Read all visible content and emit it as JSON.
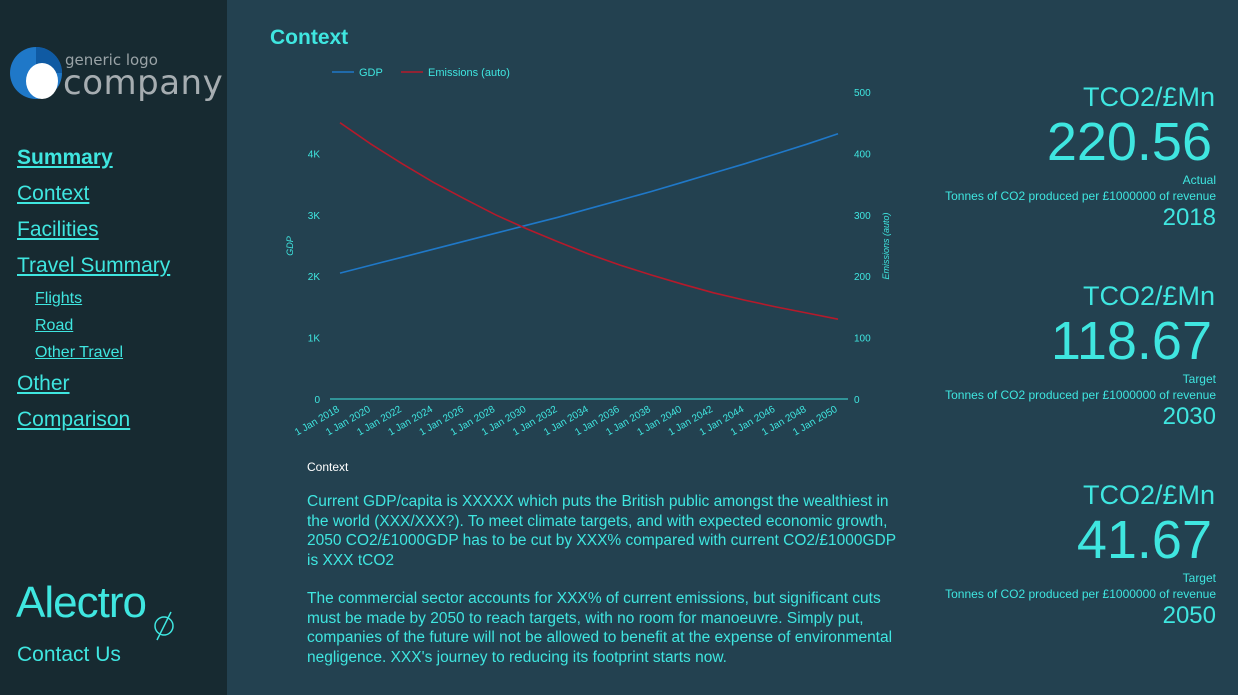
{
  "sidebar": {
    "logo": {
      "small": "generic logo",
      "big": "company"
    },
    "nav": [
      {
        "label": "Summary"
      },
      {
        "label": "Context"
      },
      {
        "label": "Facilities"
      },
      {
        "label": "Travel Summary"
      },
      {
        "label": "Flights"
      },
      {
        "label": "Road"
      },
      {
        "label": "Other Travel"
      },
      {
        "label": "Other"
      },
      {
        "label": "Comparison"
      }
    ],
    "brand": "Alectro",
    "contact": "Contact Us"
  },
  "main": {
    "title": "Context",
    "context_heading": "Context",
    "paragraphs": [
      "Current GDP/capita is XXXXX which puts the British public amongst the wealthiest in the world (XXX/XXX?). To meet climate targets, and with expected economic growth, 2050 CO2/£1000GDP has to be cut by XXX% compared with current CO2/£1000GDP is XXX tCO2",
      "The commercial sector accounts for XXX% of current emissions, but significant cuts must be made by 2050 to reach targets, with no room for manoeuvre. Simply put, companies of the future will not be allowed to benefit at the expense of environmental negligence. XXX's journey to reducing its footprint starts now."
    ]
  },
  "metrics": [
    {
      "unit": "TCO2/£Mn",
      "value": "220.56",
      "label": "Actual",
      "desc": "Tonnes of CO2 produced per £1000000 of revenue",
      "year": "2018"
    },
    {
      "unit": "TCO2/£Mn",
      "value": "118.67",
      "label": "Target",
      "desc": "Tonnes of CO2 produced per £1000000 of revenue",
      "year": "2030"
    },
    {
      "unit": "TCO2/£Mn",
      "value": "41.67",
      "label": "Target",
      "desc": "Tonnes of CO2 produced per £1000000 of revenue",
      "year": "2050"
    }
  ],
  "colors": {
    "accent": "#3fe6e0",
    "gdp": "#1f78c8",
    "emissions": "#b51a2b",
    "background": "#234150",
    "sidebar": "#172a31"
  },
  "chart_data": {
    "type": "line",
    "x": [
      "1 Jan 2018",
      "1 Jan 2020",
      "1 Jan 2022",
      "1 Jan 2024",
      "1 Jan 2026",
      "1 Jan 2028",
      "1 Jan 2030",
      "1 Jan 2032",
      "1 Jan 2034",
      "1 Jan 2036",
      "1 Jan 2038",
      "1 Jan 2040",
      "1 Jan 2042",
      "1 Jan 2044",
      "1 Jan 2046",
      "1 Jan 2048",
      "1 Jan 2050"
    ],
    "series": [
      {
        "name": "GDP",
        "axis": "left",
        "values": [
          2050,
          2180,
          2310,
          2440,
          2570,
          2700,
          2830,
          2960,
          3100,
          3240,
          3380,
          3530,
          3680,
          3830,
          3990,
          4150,
          4320
        ]
      },
      {
        "name": "Emissions (auto)",
        "axis": "right",
        "values": [
          450,
          415,
          383,
          353,
          326,
          300,
          277,
          256,
          236,
          218,
          202,
          187,
          173,
          161,
          150,
          140,
          130
        ]
      }
    ],
    "left_axis": {
      "label": "GDP",
      "ticks": [
        "0",
        "1K",
        "2K",
        "3K",
        "4K"
      ],
      "range": [
        0,
        5000
      ]
    },
    "right_axis": {
      "label": "Emissions (auto)",
      "ticks": [
        "0",
        "100",
        "200",
        "300",
        "400",
        "500"
      ],
      "range": [
        0,
        500
      ]
    },
    "legend": "top-left",
    "grid": false
  }
}
